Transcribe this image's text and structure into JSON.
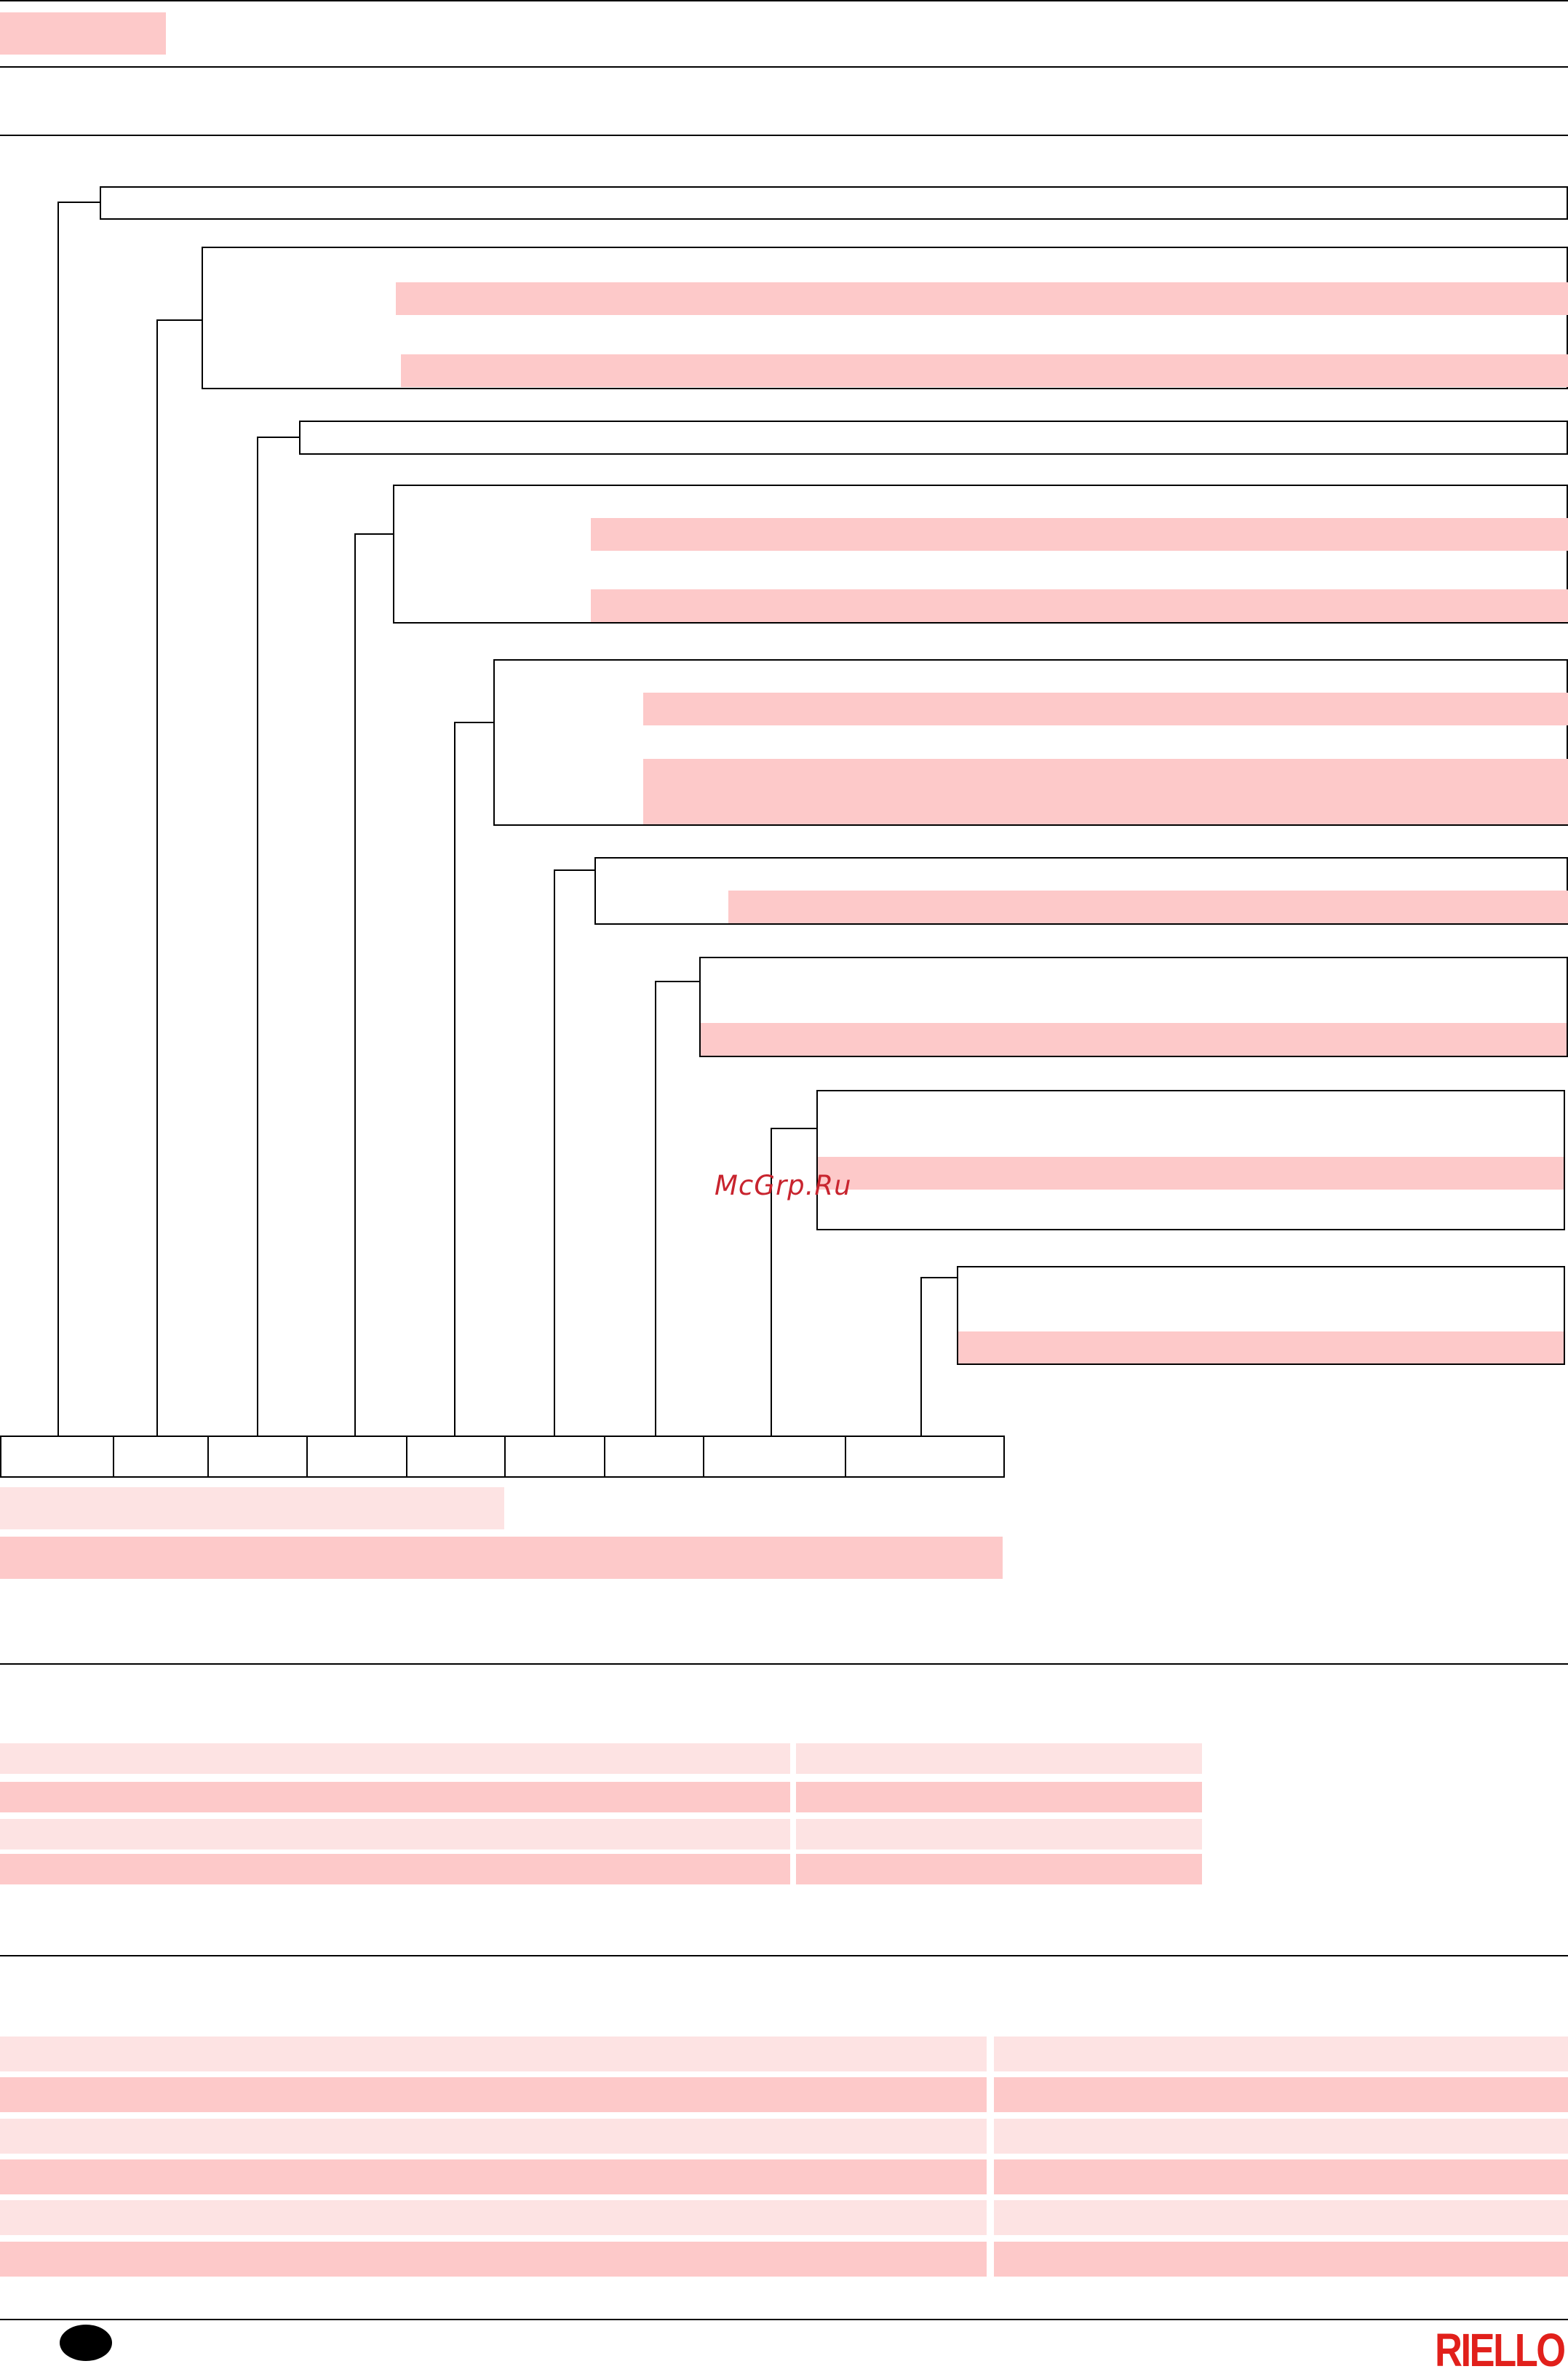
{
  "watermark": {
    "text": "McGrp.Ru"
  },
  "logo": {
    "text": "RIELLO",
    "color": "#e1201b"
  },
  "colors": {
    "redaction_dark": "#fdc9c9",
    "redaction_light": "#fde3e3",
    "rule": "#000000"
  },
  "designation": {
    "code_cells": [
      "",
      "",
      "",
      "",
      "",
      "",
      "",
      "",
      ""
    ]
  }
}
